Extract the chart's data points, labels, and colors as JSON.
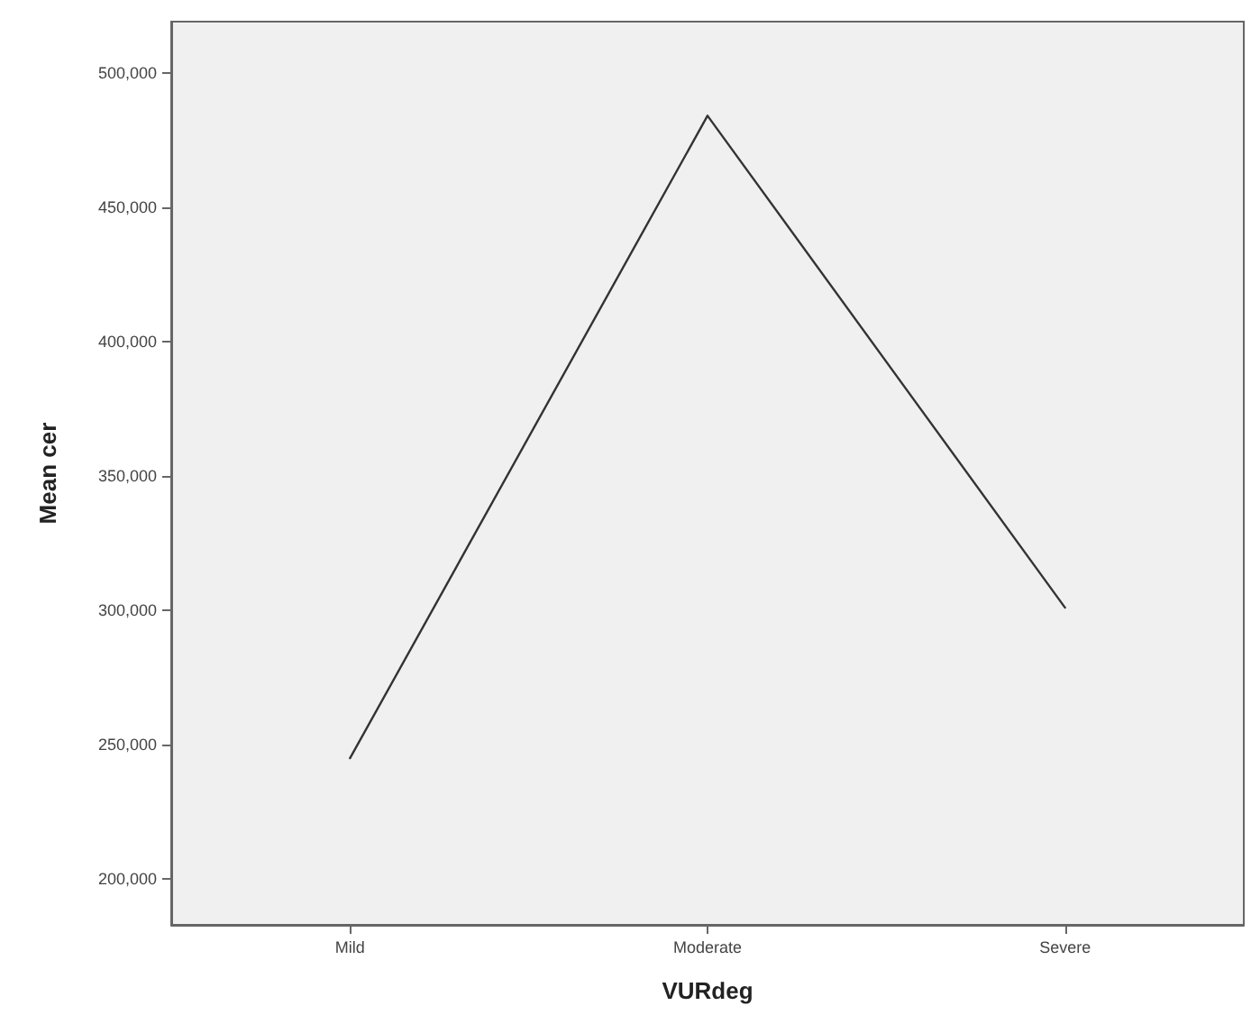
{
  "chart_data": {
    "type": "line",
    "xlabel": "VURdeg",
    "ylabel": "Mean cer",
    "categories": [
      "Mild",
      "Moderate",
      "Severe"
    ],
    "series": [
      {
        "color": "#333333",
        "values": [
          245000,
          484000,
          301000
        ]
      }
    ],
    "ylim": [
      183000,
      519000
    ],
    "yticks": [
      {
        "value": 200000,
        "label": "200,000"
      },
      {
        "value": 250000,
        "label": "250,000"
      },
      {
        "value": 300000,
        "label": "300,000"
      },
      {
        "value": 350000,
        "label": "350,000"
      },
      {
        "value": 400000,
        "label": "400,000"
      },
      {
        "value": 450000,
        "label": "450,000"
      },
      {
        "value": 500000,
        "label": "500,000"
      }
    ],
    "grid": false,
    "marker": "none",
    "line_style": "solid"
  }
}
